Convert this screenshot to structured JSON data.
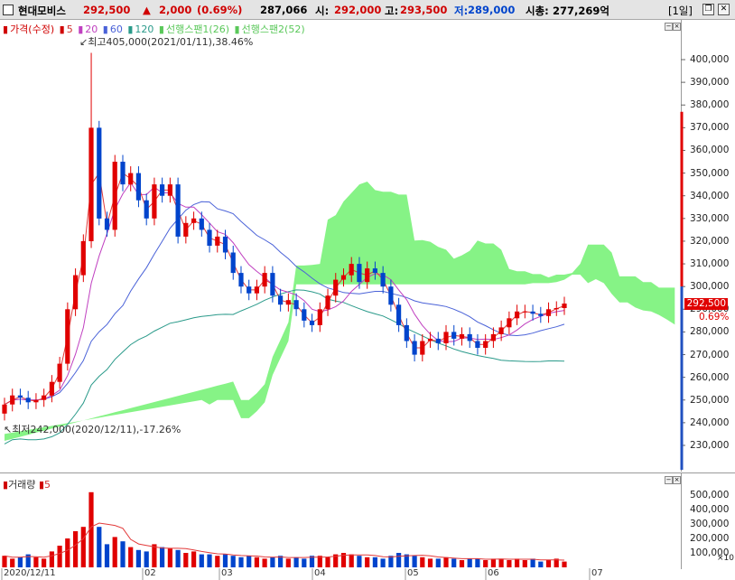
{
  "header": {
    "name": "현대모비스",
    "price": "292,500",
    "change_arrow": "▲",
    "change": "2,000",
    "change_pct": "(0.69%)",
    "volume": "287,066",
    "open_label": "시:",
    "open": "292,000",
    "high_label": "고:",
    "high": "293,500",
    "low_label": "저:",
    "low": "289,000",
    "mcap_label": "시총:",
    "mcap": "277,269억",
    "period": "[1일]",
    "restore_glyph": "❐",
    "close_glyph": "✕"
  },
  "legend": {
    "price": "가격(수정)",
    "ma5": "5",
    "ma20": "20",
    "ma60": "60",
    "ma120": "120",
    "span1": "선행스팬1(26)",
    "span2": "선행스팬2(52)"
  },
  "annotations": {
    "high": "최고405,000(2021/01/11),38.46%",
    "low": "최저242,000(2020/12/11),-17.26%"
  },
  "right_axis": {
    "price_ticks": [
      "400,000",
      "390,000",
      "380,000",
      "370,000",
      "360,000",
      "350,000",
      "340,000",
      "330,000",
      "320,000",
      "310,000",
      "300,000",
      "290,000",
      "280,000",
      "270,000",
      "260,000",
      "250,000",
      "240,000",
      "230,000"
    ],
    "current_price": "292,500",
    "current_change": "0.69%",
    "volume_ticks": [
      "500,000",
      "400,000",
      "300,000",
      "200,000",
      "100,000"
    ],
    "volume_unit": "×10"
  },
  "volume_pane": {
    "label": "거래량",
    "ma": "5"
  },
  "x_axis": [
    "2020/12/11",
    "02",
    "03",
    "04",
    "05",
    "06",
    "07"
  ],
  "colors": {
    "up": "#e00000",
    "down": "#0044cc",
    "cloud": "#7ff27f",
    "ma5": "#e23a3a",
    "ma20": "#c040c0",
    "ma60": "#4a62d8",
    "ma120": "#2a9a8a"
  },
  "chart_data": {
    "type": "candlestick",
    "y_range": [
      220000,
      410000
    ],
    "volume_range": [
      0,
      560000
    ],
    "x_ticks": [
      "2020/12/11",
      "02",
      "03",
      "04",
      "05",
      "06",
      "07"
    ],
    "closes": [
      248000,
      252000,
      251000,
      249000,
      250000,
      252000,
      258000,
      266000,
      290000,
      305000,
      320000,
      370000,
      330000,
      325000,
      355000,
      345000,
      350000,
      338000,
      330000,
      345000,
      340000,
      345000,
      322000,
      328000,
      330000,
      325000,
      318000,
      322000,
      315000,
      306000,
      300000,
      297000,
      300000,
      306000,
      296000,
      292000,
      294000,
      290000,
      285000,
      283000,
      290000,
      296000,
      303000,
      305000,
      310000,
      302000,
      308000,
      306000,
      300000,
      292000,
      283000,
      276000,
      270000,
      276000,
      277000,
      275000,
      280000,
      277000,
      279000,
      276000,
      273000,
      276000,
      279000,
      282000,
      286000,
      289000,
      289000,
      288000,
      287000,
      290000,
      290500,
      292500
    ],
    "volumes": [
      80000,
      60000,
      70000,
      90000,
      70000,
      60000,
      110000,
      150000,
      200000,
      250000,
      280000,
      520000,
      280000,
      160000,
      210000,
      180000,
      140000,
      120000,
      110000,
      160000,
      140000,
      130000,
      120000,
      100000,
      110000,
      90000,
      90000,
      80000,
      90000,
      80000,
      70000,
      80000,
      70000,
      60000,
      70000,
      80000,
      60000,
      70000,
      60000,
      80000,
      80000,
      70000,
      90000,
      100000,
      90000,
      80000,
      70000,
      70000,
      60000,
      80000,
      100000,
      90000,
      80000,
      70000,
      60000,
      60000,
      70000,
      60000,
      50000,
      60000,
      60000,
      50000,
      60000,
      60000,
      50000,
      60000,
      50000,
      60000,
      40000,
      50000,
      60000,
      40000
    ],
    "series": [
      {
        "name": "5",
        "values": []
      },
      {
        "name": "20",
        "values": []
      },
      {
        "name": "60",
        "values": []
      },
      {
        "name": "120",
        "values": []
      },
      {
        "name": "선행스팬1(26)",
        "values": []
      },
      {
        "name": "선행스팬2(52)",
        "values": []
      }
    ]
  }
}
